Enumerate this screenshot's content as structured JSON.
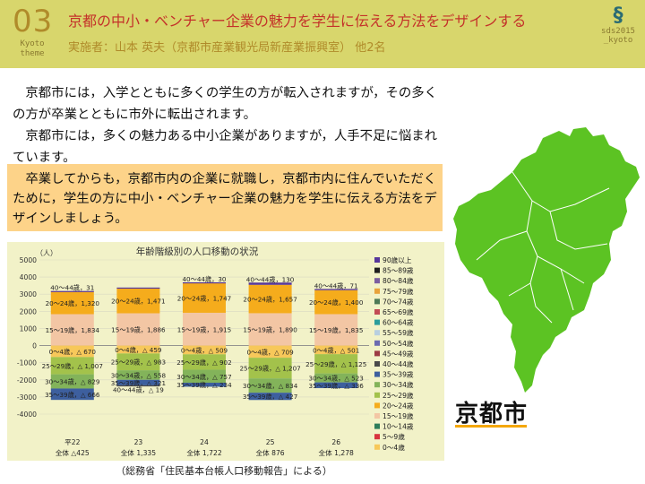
{
  "header": {
    "number": "03",
    "kyoto": "Kyoto",
    "theme": "theme",
    "title": "京都の中小・ベンチャー企業の魅力を学生に伝える方法をデザインする",
    "author": "実施者：山本 英夫（京都市産業観光局新産業振興室） 他2名",
    "logo_line1": "sds2015",
    "logo_line2": "_kyoto"
  },
  "intro": {
    "p1": "京都市には，入学とともに多くの学生の方が転入されますが，その多くの方が卒業とともに市外に転出されます。",
    "p2": "京都市には，多くの魅力ある中小企業がありますが，人手不足に悩まれています。"
  },
  "callout": {
    "text": "卒業してからも，京都市内の企業に就職し，京都市内に住んでいただくために，学生の方に中小・ベンチャー企業の魅力を学生に伝える方法をデザインしましょう。"
  },
  "source": "（総務省「住民基本台帳人口移動報告」による）",
  "map": {
    "label": "京都市",
    "fill": "#5cc323"
  },
  "chart_data": {
    "type": "bar",
    "title": "年齢階級別の人口移動の状況",
    "ylabel": "（人）",
    "ylim": [
      -4000,
      5000
    ],
    "yticks": [
      5000,
      4000,
      3000,
      2000,
      1000,
      0,
      -1000,
      -2000,
      -3000,
      -4000
    ],
    "categories": [
      "平22",
      "23",
      "24",
      "25",
      "26"
    ],
    "totals": [
      "全体 △425",
      "全体 1,335",
      "全体 1,722",
      "全体 876",
      "全体 1,278"
    ],
    "legend": [
      "90歳以上",
      "85～89歳",
      "80～84歳",
      "75～79歳",
      "70～74歳",
      "65～69歳",
      "60～64歳",
      "55～59歳",
      "50～54歳",
      "45～49歳",
      "40～44歳",
      "35～39歳",
      "30～34歳",
      "25～29歳",
      "20～24歳",
      "15～19歳",
      "10～14歳",
      "5～9歳",
      "0～4歳"
    ],
    "colors": {
      "0～4歳": "#f7c85a",
      "5～9歳": "#d8343f",
      "10～14歳": "#2e7d5b",
      "15～19歳": "#f3c6a4",
      "20～24歳": "#f5ac1c",
      "25～29歳": "#a3c24b",
      "30～34歳": "#83b35a",
      "35～39歳": "#3d5f9e",
      "40～44歳": "#4a4a4a",
      "45～49歳": "#9c3b43",
      "50～54歳": "#6b6bb0",
      "55～59歳": "#b8cfe0",
      "60～64歳": "#2a9d9b",
      "65～69歳": "#c24b54",
      "70～74歳": "#4e7a56",
      "75～79歳": "#e8a33b",
      "80～84歳": "#7b5ea0",
      "85～89歳": "#1f1f1f",
      "90歳以上": "#57379b"
    },
    "series": [
      {
        "name": "40～44歳",
        "values": [
          31,
          30,
          30,
          130,
          71
        ],
        "labels": [
          "40～44歳，31",
          "",
          "40～44歳，30",
          "40～44歳，130",
          "40～44歳，71"
        ]
      },
      {
        "name": "20～24歳",
        "values": [
          1320,
          1471,
          1747,
          1657,
          1400
        ],
        "labels": [
          "20～24歳，1,320",
          "20～24歳，1,471",
          "20～24歳，1,747",
          "20～24歳，1,657",
          "20～24歳，1,400"
        ]
      },
      {
        "name": "15～19歳",
        "values": [
          1834,
          1886,
          1915,
          1890,
          1835
        ],
        "labels": [
          "15～19歳，1,834",
          "15～19歳，1,886",
          "15～19歳，1,915",
          "15～19歳，1,890",
          "15～19歳，1,835"
        ]
      },
      {
        "name": "0～4歳",
        "values": [
          -670,
          -459,
          -509,
          -709,
          -501
        ],
        "labels": [
          "0～4歳，△ 670",
          "0～4歳，△ 459",
          "0～4歳，△ 509",
          "0～4歳，△ 709",
          "0～4歳，△ 501"
        ]
      },
      {
        "name": "25～29歳",
        "values": [
          -1007,
          -983,
          -902,
          -1207,
          -1125
        ],
        "labels": [
          "25～29歳，△ 1,007",
          "25～29歳，△ 983",
          "25～29歳，△ 902",
          "25～29歳，△ 1,207",
          "25～29歳，△ 1,125"
        ]
      },
      {
        "name": "30～34歳",
        "values": [
          -829,
          -558,
          -757,
          -834,
          -523
        ],
        "labels": [
          "30～34歳，△ 829",
          "30～34歳，△ 558",
          "30～34歳，△ 757",
          "30～34歳，△ 834",
          "30～34歳，△ 523"
        ]
      },
      {
        "name": "35～39歳",
        "values": [
          -666,
          -321,
          -234,
          -427,
          -336
        ],
        "labels": [
          "35～39歳，△ 666",
          "35～39歳，△ 321",
          "35～39歳，△ 234",
          "35～39歳，△ 427",
          "35～39歳，△ 336"
        ]
      },
      {
        "name": "40～44歳（転出）",
        "values": [
          0,
          -19,
          0,
          0,
          0
        ],
        "labels": [
          "",
          "40～44歳，△ 19",
          "",
          "",
          ""
        ]
      }
    ],
    "grid": true,
    "legend_position": "right"
  }
}
